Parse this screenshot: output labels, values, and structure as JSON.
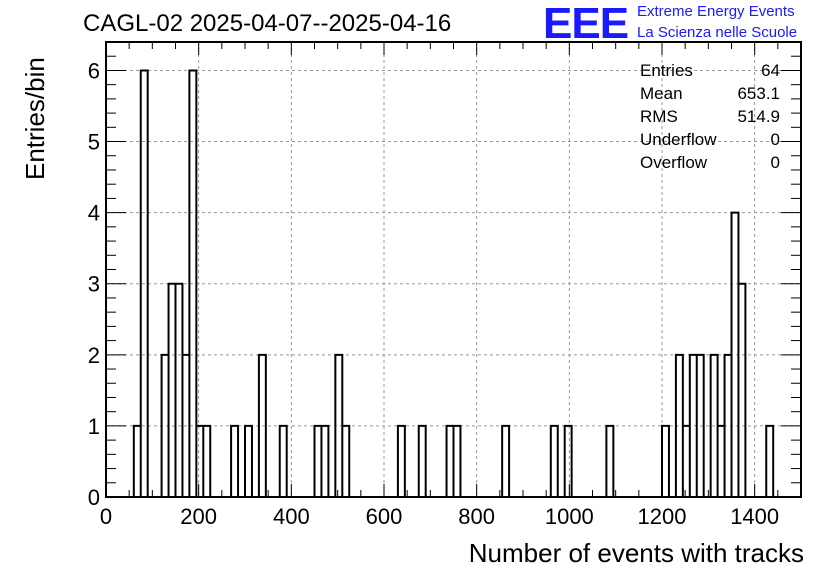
{
  "title": "CAGL-02 2025-04-07--2025-04-16",
  "logo": {
    "mark": "EEE",
    "line1": "Extreme Energy Events",
    "line2": "La Scienza nelle Scuole",
    "color": "#1a1aff"
  },
  "stats": [
    {
      "label": "Entries",
      "value": "64"
    },
    {
      "label": "Mean",
      "value": "653.1"
    },
    {
      "label": "RMS",
      "value": "514.9"
    },
    {
      "label": "Underflow",
      "value": "0"
    },
    {
      "label": "Overflow",
      "value": "0"
    }
  ],
  "chart_data": {
    "type": "bar",
    "style": "step-histogram",
    "title": "CAGL-02 2025-04-07--2025-04-16",
    "xlabel": "Number of events with tracks",
    "ylabel": "Entries/bin",
    "xlim": [
      0,
      1500
    ],
    "ylim": [
      0,
      6.4
    ],
    "bin_width": 15,
    "grid": true,
    "line_color": "#000000",
    "x_ticks": [
      0,
      200,
      400,
      600,
      800,
      1000,
      1200,
      1400
    ],
    "y_ticks": [
      0,
      1,
      2,
      3,
      4,
      5,
      6
    ],
    "bins": [
      {
        "x": 60,
        "y": 1
      },
      {
        "x": 75,
        "y": 6
      },
      {
        "x": 120,
        "y": 2
      },
      {
        "x": 135,
        "y": 3
      },
      {
        "x": 150,
        "y": 3
      },
      {
        "x": 165,
        "y": 2
      },
      {
        "x": 180,
        "y": 6
      },
      {
        "x": 195,
        "y": 1
      },
      {
        "x": 210,
        "y": 1
      },
      {
        "x": 270,
        "y": 1
      },
      {
        "x": 300,
        "y": 1
      },
      {
        "x": 330,
        "y": 2
      },
      {
        "x": 375,
        "y": 1
      },
      {
        "x": 450,
        "y": 1
      },
      {
        "x": 465,
        "y": 1
      },
      {
        "x": 495,
        "y": 2
      },
      {
        "x": 510,
        "y": 1
      },
      {
        "x": 630,
        "y": 1
      },
      {
        "x": 675,
        "y": 1
      },
      {
        "x": 735,
        "y": 1
      },
      {
        "x": 750,
        "y": 1
      },
      {
        "x": 855,
        "y": 1
      },
      {
        "x": 960,
        "y": 1
      },
      {
        "x": 990,
        "y": 1
      },
      {
        "x": 1080,
        "y": 1
      },
      {
        "x": 1200,
        "y": 1
      },
      {
        "x": 1230,
        "y": 2
      },
      {
        "x": 1245,
        "y": 1
      },
      {
        "x": 1260,
        "y": 2
      },
      {
        "x": 1275,
        "y": 2
      },
      {
        "x": 1305,
        "y": 2
      },
      {
        "x": 1320,
        "y": 1
      },
      {
        "x": 1335,
        "y": 2
      },
      {
        "x": 1350,
        "y": 4
      },
      {
        "x": 1365,
        "y": 3
      },
      {
        "x": 1425,
        "y": 1
      }
    ]
  }
}
